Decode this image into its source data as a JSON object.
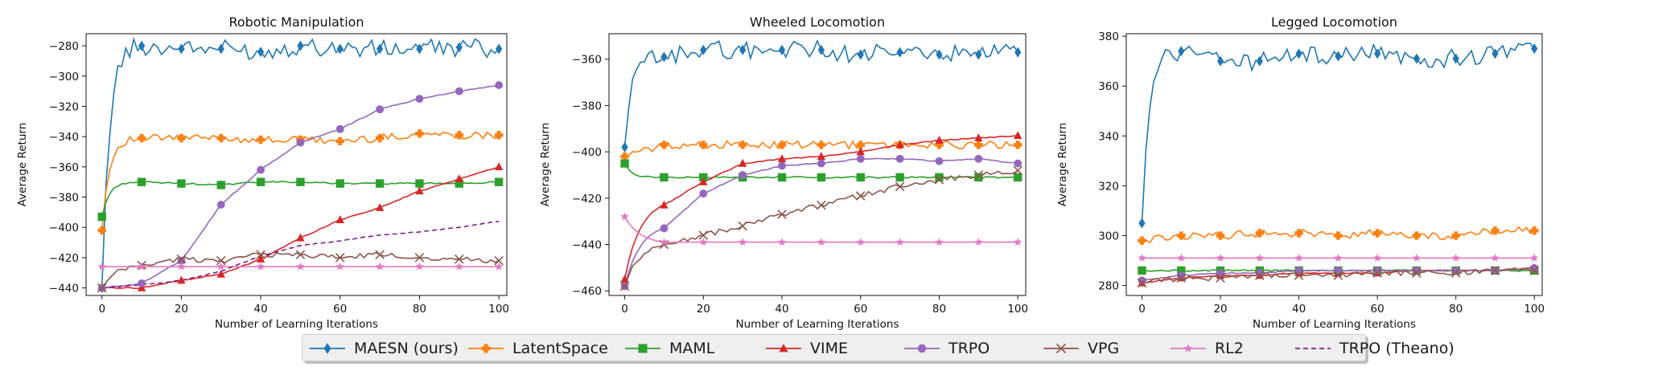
{
  "chart_data": [
    {
      "type": "line",
      "title": "Robotic Manipulation",
      "xlabel": "Number of Learning Iterations",
      "ylabel": "Average Return",
      "xlim": [
        -4,
        102
      ],
      "ylim": [
        -445,
        -272
      ],
      "xticks": [
        0,
        20,
        40,
        60,
        80,
        100
      ],
      "yticks": [
        -440,
        -420,
        -400,
        -380,
        -360,
        -340,
        -320,
        -300,
        -280
      ],
      "x": [
        0,
        10,
        20,
        30,
        40,
        50,
        60,
        70,
        80,
        90,
        100
      ],
      "series": [
        {
          "name": "MAESN (ours)",
          "values": [
            -440,
            -280,
            -282,
            -282,
            -284,
            -280,
            -282,
            -282,
            -282,
            -281,
            -282
          ]
        },
        {
          "name": "LatentSpace",
          "values": [
            -402,
            -341,
            -341,
            -341,
            -342,
            -342,
            -343,
            -341,
            -338,
            -339,
            -339
          ]
        },
        {
          "name": "MAML",
          "values": [
            -393,
            -370,
            -371,
            -372,
            -370,
            -370,
            -371,
            -371,
            -371,
            -371,
            -370
          ]
        },
        {
          "name": "VIME",
          "values": [
            -440,
            -440,
            -435,
            -431,
            -421,
            -407,
            -395,
            -387,
            -376,
            -368,
            -360
          ]
        },
        {
          "name": "TRPO",
          "values": [
            -440,
            -437,
            -422,
            -385,
            -362,
            -344,
            -335,
            -322,
            -315,
            -310,
            -306
          ]
        },
        {
          "name": "VPG",
          "values": [
            -440,
            -425,
            -421,
            -422,
            -418,
            -418,
            -420,
            -418,
            -420,
            -421,
            -422
          ]
        },
        {
          "name": "RL2",
          "values": [
            -426,
            -426,
            -426,
            -426,
            -426,
            -426,
            -426,
            -426,
            -426,
            -426,
            -426
          ]
        },
        {
          "name": "TRPO (Theano)",
          "values": [
            -440,
            -438,
            -435,
            -429,
            -419,
            -412,
            -409,
            -405,
            -403,
            -400,
            -396
          ]
        }
      ]
    },
    {
      "type": "line",
      "title": "Wheeled Locomotion",
      "xlabel": "Number of Learning Iterations",
      "ylabel": "Average Return",
      "xlim": [
        -4,
        102
      ],
      "ylim": [
        -462,
        -349
      ],
      "xticks": [
        0,
        20,
        40,
        60,
        80,
        100
      ],
      "yticks": [
        -460,
        -440,
        -420,
        -400,
        -380,
        -360
      ],
      "x": [
        0,
        10,
        20,
        30,
        40,
        50,
        60,
        70,
        80,
        90,
        100
      ],
      "series": [
        {
          "name": "MAESN (ours)",
          "values": [
            -398,
            -359,
            -356,
            -356,
            -356,
            -356,
            -358,
            -357,
            -358,
            -358,
            -357
          ]
        },
        {
          "name": "LatentSpace",
          "values": [
            -402,
            -397,
            -397,
            -397,
            -397,
            -397,
            -397,
            -397,
            -397,
            -397,
            -397
          ]
        },
        {
          "name": "MAML",
          "values": [
            -405,
            -411,
            -411,
            -411,
            -411,
            -411,
            -411,
            -411,
            -411,
            -411,
            -411
          ]
        },
        {
          "name": "VIME",
          "values": [
            -455,
            -423,
            -413,
            -405,
            -403,
            -402,
            -400,
            -397,
            -395,
            -394,
            -393
          ]
        },
        {
          "name": "TRPO",
          "values": [
            -458,
            -433,
            -418,
            -410,
            -406,
            -405,
            -403,
            -403,
            -404,
            -403,
            -405
          ]
        },
        {
          "name": "VPG",
          "values": [
            -458,
            -440,
            -436,
            -432,
            -427,
            -423,
            -419,
            -415,
            -412,
            -410,
            -408
          ]
        },
        {
          "name": "RL2",
          "values": [
            -428,
            -439,
            -439,
            -439,
            -439,
            -439,
            -439,
            -439,
            -439,
            -439,
            -439
          ]
        }
      ]
    },
    {
      "type": "line",
      "title": "Legged Locomotion",
      "xlabel": "Number of Learning Iterations",
      "ylabel": "Average Return",
      "xlim": [
        -4,
        102
      ],
      "ylim": [
        276,
        381
      ],
      "xticks": [
        0,
        20,
        40,
        60,
        80,
        100
      ],
      "yticks": [
        280,
        300,
        320,
        340,
        360,
        380
      ],
      "x": [
        0,
        10,
        20,
        30,
        40,
        50,
        60,
        70,
        80,
        90,
        100
      ],
      "series": [
        {
          "name": "MAESN (ours)",
          "values": [
            305,
            374,
            370,
            370,
            373,
            372,
            373,
            371,
            371,
            373,
            375
          ]
        },
        {
          "name": "LatentSpace",
          "values": [
            298,
            300,
            300,
            301,
            301,
            300,
            301,
            300,
            300,
            302,
            302
          ]
        },
        {
          "name": "MAML",
          "values": [
            286,
            286,
            286,
            286,
            286,
            286,
            286,
            286,
            286,
            286,
            286
          ]
        },
        {
          "name": "VIME",
          "values": [
            281,
            283,
            284,
            284,
            285,
            285,
            285,
            286,
            286,
            286,
            287
          ]
        },
        {
          "name": "TRPO",
          "values": [
            282,
            284,
            285,
            285,
            286,
            286,
            286,
            286,
            286,
            286,
            287
          ]
        },
        {
          "name": "VPG",
          "values": [
            281,
            283,
            283,
            284,
            284,
            284,
            285,
            285,
            285,
            286,
            286
          ]
        },
        {
          "name": "RL2",
          "values": [
            291,
            291,
            291,
            291,
            291,
            291,
            291,
            291,
            291,
            291,
            291
          ]
        }
      ]
    }
  ],
  "legend": {
    "items": [
      {
        "label": "MAESN (ours)",
        "color": "#1f77b4",
        "marker": "diamond",
        "dash": false
      },
      {
        "label": "LatentSpace",
        "color": "#ff7f0e",
        "marker": "plus",
        "dash": false
      },
      {
        "label": "MAML",
        "color": "#2ca02c",
        "marker": "square",
        "dash": false
      },
      {
        "label": "VIME",
        "color": "#d62728",
        "marker": "triangle",
        "dash": false
      },
      {
        "label": "TRPO",
        "color": "#9467bd",
        "marker": "circle",
        "dash": false
      },
      {
        "label": "VPG",
        "color": "#8c564b",
        "marker": "x",
        "dash": false
      },
      {
        "label": "RL2",
        "color": "#e377c2",
        "marker": "star",
        "dash": false
      },
      {
        "label": "TRPO (Theano)",
        "color": "#7b1f8a",
        "marker": "none",
        "dash": true
      }
    ]
  }
}
